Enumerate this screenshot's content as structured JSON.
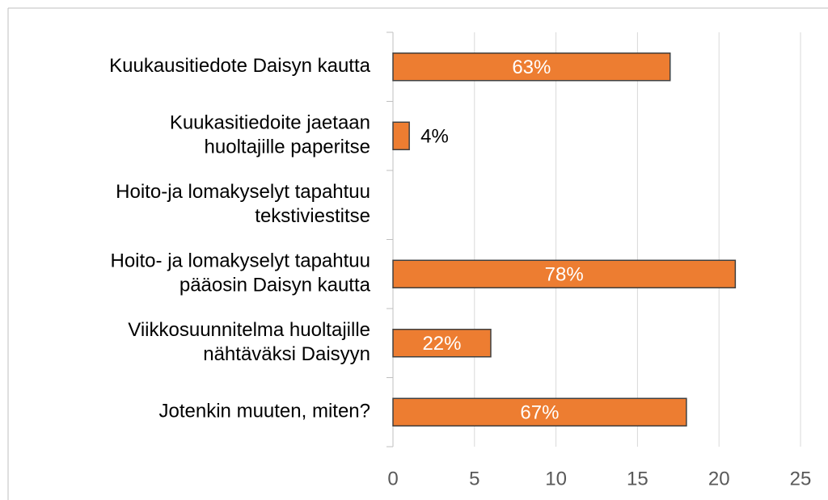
{
  "chart_data": {
    "type": "bar",
    "orientation": "horizontal",
    "categories": [
      [
        "Kuukausitiedote Daisyn kautta"
      ],
      [
        "Kuukasitiedoite jaetaan",
        "huoltajille paperitse"
      ],
      [
        "Hoito-ja lomakyselyt tapahtuu",
        "tekstiviestitse"
      ],
      [
        "Hoito- ja lomakyselyt tapahtuu",
        "pääosin Daisyn kautta"
      ],
      [
        "Viikkosuunnitelma huoltajille",
        "nähtäväksi Daisyyn"
      ],
      [
        "Jotenkin muuten, miten?"
      ]
    ],
    "values": [
      17,
      1,
      0,
      21,
      6,
      18
    ],
    "value_labels": [
      "63%",
      "4%",
      null,
      "78%",
      "22%",
      "67%"
    ],
    "color": "#ed7d31",
    "xlim": [
      0,
      25
    ],
    "xticks": [
      0,
      5,
      10,
      15,
      20,
      25
    ],
    "grid": true
  }
}
